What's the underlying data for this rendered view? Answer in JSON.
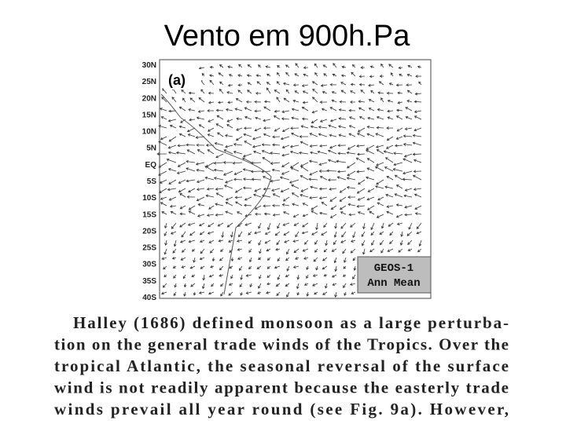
{
  "title": "Vento em 900h.Pa",
  "figure": {
    "panel_label": "(a)",
    "latitude_labels": [
      "30N",
      "25N",
      "20N",
      "15N",
      "10N",
      "5N",
      "EQ",
      "5S",
      "10S",
      "15S",
      "20S",
      "25S",
      "30S",
      "35S",
      "40S"
    ],
    "legend": [
      "GEOS-1",
      "Ann Mean"
    ]
  },
  "text": {
    "lines": [
      "Halley (1686) defined monsoon as a large perturba-",
      "tion on the general trade winds of the Tropics. Over the",
      "tropical Atlantic, the seasonal reversal of the surface",
      "wind is not readily apparent because the easterly trade",
      "winds prevail all year round (see Fig. 9a). However,"
    ]
  }
}
